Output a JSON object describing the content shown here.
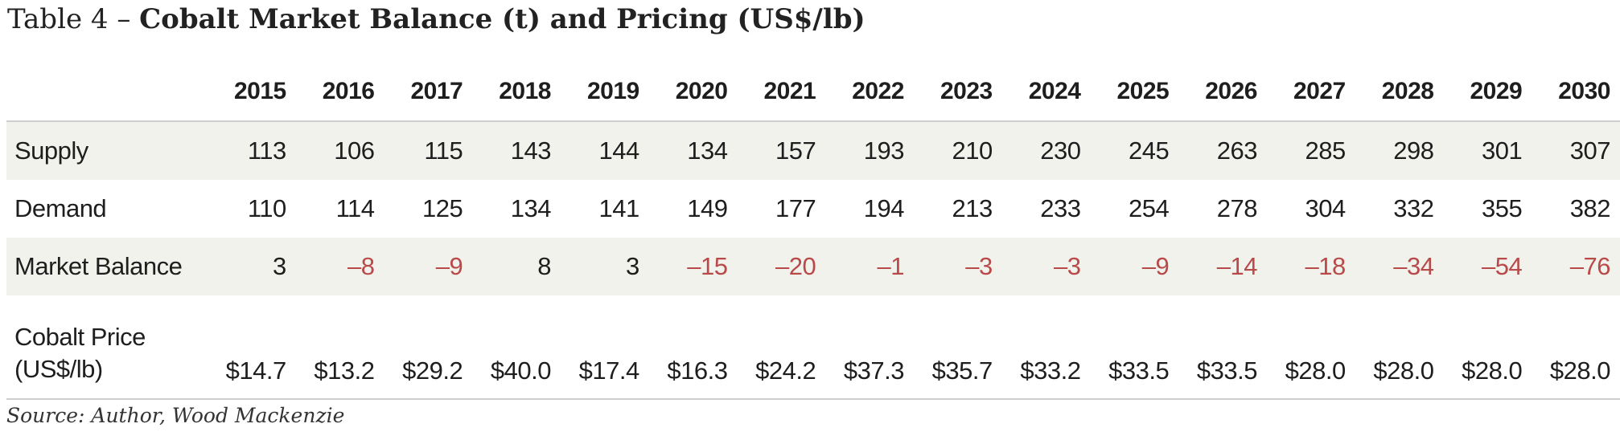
{
  "title": {
    "prefix": "Table 4 – ",
    "main": "Cobalt Market Balance (t) and Pricing (US$/lb)"
  },
  "years": [
    "2015",
    "2016",
    "2017",
    "2018",
    "2019",
    "2020",
    "2021",
    "2022",
    "2023",
    "2024",
    "2025",
    "2026",
    "2027",
    "2028",
    "2029",
    "2030"
  ],
  "rows": [
    {
      "label": "Supply",
      "values": [
        "113",
        "106",
        "115",
        "143",
        "144",
        "134",
        "157",
        "193",
        "210",
        "230",
        "245",
        "263",
        "285",
        "298",
        "301",
        "307"
      ]
    },
    {
      "label": "Demand",
      "values": [
        "110",
        "114",
        "125",
        "134",
        "141",
        "149",
        "177",
        "194",
        "213",
        "233",
        "254",
        "278",
        "304",
        "332",
        "355",
        "382"
      ]
    },
    {
      "label": "Market Balance",
      "values": [
        "3",
        "–8",
        "–9",
        "8",
        "3",
        "–15",
        "–20",
        "–1",
        "–3",
        "–3",
        "–9",
        "–14",
        "–18",
        "–34",
        "–54",
        "–76"
      ]
    },
    {
      "label_line1": "Cobalt Price",
      "label_line2": "(US$/lb)",
      "values": [
        "$14.7",
        "$13.2",
        "$29.2",
        "$40.0",
        "$17.4",
        "$16.3",
        "$24.2",
        "$37.3",
        "$35.7",
        "$33.2",
        "$33.5",
        "$33.5",
        "$28.0",
        "$28.0",
        "$28.0",
        "$28.0"
      ]
    }
  ],
  "colors": {
    "negative": "#b94a4a",
    "shade": "#f1f2ec",
    "rule": "#cfcfcf"
  },
  "source": "Source: Author, Wood Mackenzie"
}
